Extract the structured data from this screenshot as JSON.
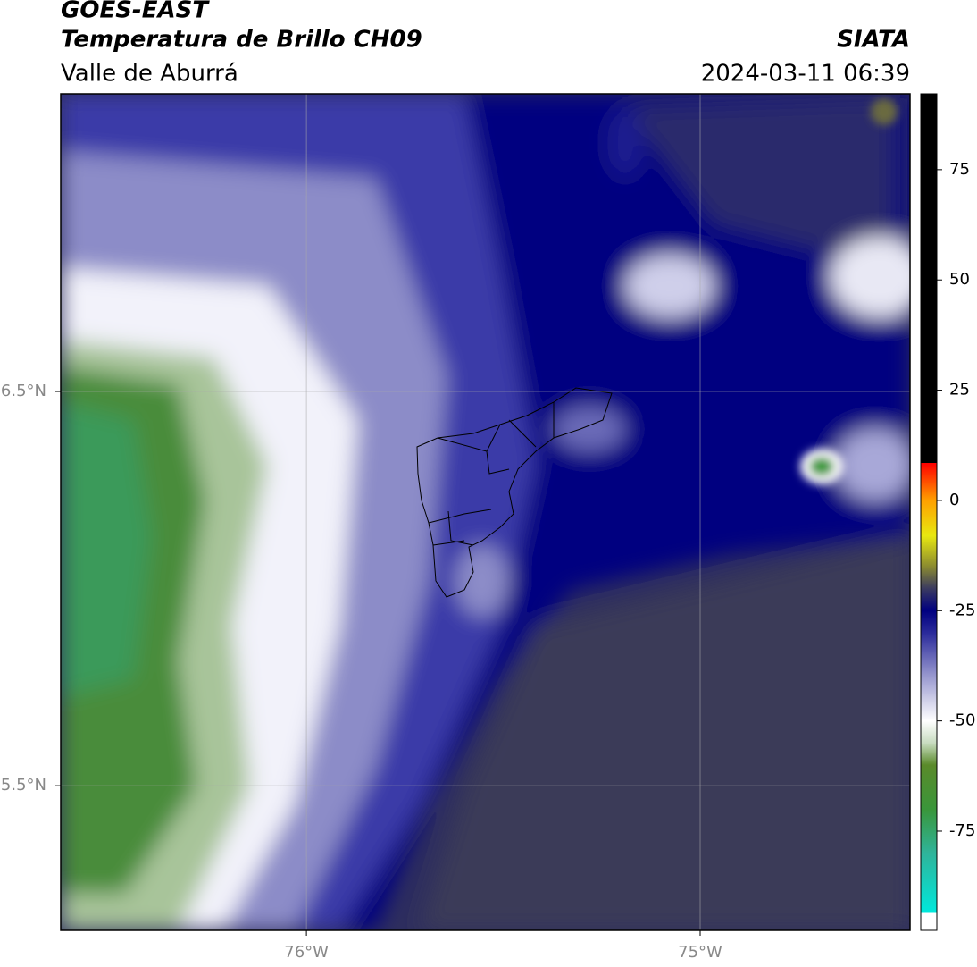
{
  "header": {
    "title": "GOES-EAST",
    "subtitle": "Temperatura de Brillo CH09",
    "region": "Valle de Aburrá",
    "source": "SIATA",
    "datetime": "2024-03-11 06:39"
  },
  "map": {
    "lonlim": [
      -76.624,
      -74.467
    ],
    "latlim": [
      5.133,
      7.255
    ],
    "lonticks": [
      {
        "value": -76,
        "label": "76°W"
      },
      {
        "value": -75,
        "label": "75°W"
      }
    ],
    "latticks": [
      {
        "value": 6.5,
        "label": "6.5°N"
      },
      {
        "value": 5.5,
        "label": "5.5°N"
      }
    ],
    "grid": true
  },
  "colorbar": {
    "lim": [
      -97.5,
      92.2
    ],
    "ticks": [
      75,
      50,
      25,
      0,
      -25,
      -50,
      -75
    ],
    "stops": [
      {
        "value": -97.5,
        "color": "#ffffff"
      },
      {
        "value": -93.5,
        "color": "#ffffff"
      },
      {
        "value": -93.5,
        "color": "#00e8dc"
      },
      {
        "value": -80,
        "color": "#2fb49a"
      },
      {
        "value": -70,
        "color": "#3a963a"
      },
      {
        "value": -60,
        "color": "#5a8a2a"
      },
      {
        "value": -55,
        "color": "#c8dcc0"
      },
      {
        "value": -50,
        "color": "#ffffff"
      },
      {
        "value": -40,
        "color": "#9a9ad0"
      },
      {
        "value": -30,
        "color": "#2a2a9a"
      },
      {
        "value": -25,
        "color": "#000080"
      },
      {
        "value": -20,
        "color": "#3a3a60"
      },
      {
        "value": -15,
        "color": "#8a8a30"
      },
      {
        "value": -8,
        "color": "#e8e810"
      },
      {
        "value": 0,
        "color": "#ffa000"
      },
      {
        "value": 5,
        "color": "#ff4000"
      },
      {
        "value": 8.5,
        "color": "#ff0000"
      },
      {
        "value": 8.5,
        "color": "#000000"
      },
      {
        "value": 92.2,
        "color": "#000000"
      }
    ]
  }
}
